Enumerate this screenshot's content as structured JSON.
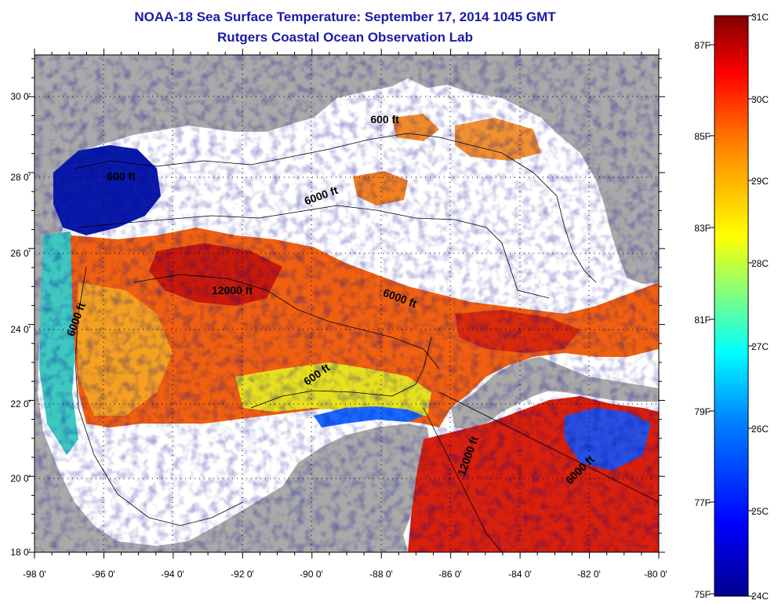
{
  "title": {
    "line1": "NOAA-18 Sea Surface Temperature:  September 17, 2014 1045 GMT",
    "line2": "Rutgers Coastal Ocean Observation Lab"
  },
  "map": {
    "lon_ticks": [
      "-98 0'",
      "-96 0'",
      "-94 0'",
      "-92 0'",
      "-90 0'",
      "-88 0'",
      "-86 0'",
      "-84 0'",
      "-82 0'",
      "-80 0'"
    ],
    "lat_ticks": [
      "30 0'",
      "28 0'",
      "26 0'",
      "24 0'",
      "22 0'",
      "20 0'",
      "18 0'"
    ],
    "contour_labels": [
      {
        "text": "600 ft",
        "lon": -87.9,
        "lat": 29.3
      },
      {
        "text": "600 ft",
        "lon": -95.5,
        "lat": 27.8
      },
      {
        "text": "6000 ft",
        "lon": -89.7,
        "lat": 27.3
      },
      {
        "text": "12000 ft",
        "lon": -92.3,
        "lat": 24.8
      },
      {
        "text": "6000 ft",
        "lon": -87.5,
        "lat": 24.6
      },
      {
        "text": "6000 ft",
        "lon": -96.7,
        "lat": 24.1
      },
      {
        "text": "600 ft",
        "lon": -89.8,
        "lat": 22.6
      },
      {
        "text": "12000 ft",
        "lon": -85.4,
        "lat": 20.5
      },
      {
        "text": "6000 ft",
        "lon": -82.2,
        "lat": 20.1
      }
    ]
  },
  "colorbar": {
    "celsius": [
      "31C",
      "30C",
      "29C",
      "28C",
      "27C",
      "26C",
      "25C",
      "24C"
    ],
    "fahrenheit": [
      "87F",
      "85F",
      "83F",
      "81F",
      "79F",
      "77F",
      "75F"
    ],
    "colors": [
      "#00008f",
      "#0000ff",
      "#0080ff",
      "#00ffff",
      "#80ff80",
      "#ffff00",
      "#ff8000",
      "#ff0000",
      "#800000"
    ]
  },
  "colors": {
    "land": "#a9a9a9",
    "cloud": "#ffffff",
    "title": "#1a1aa6"
  }
}
